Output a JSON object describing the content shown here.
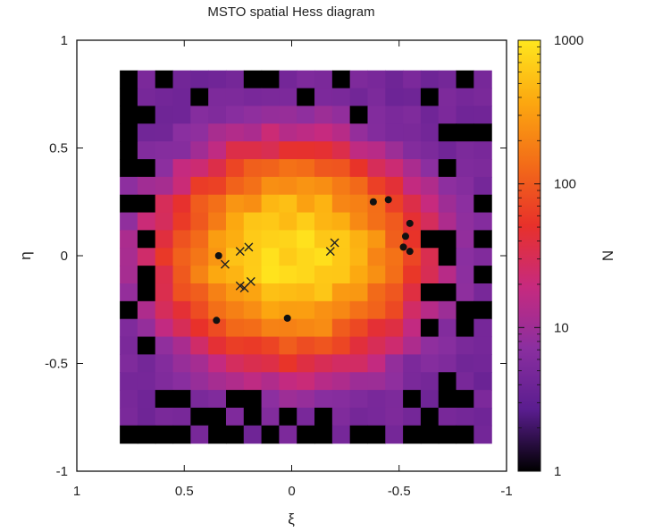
{
  "chart_data": {
    "type": "heatmap",
    "title": "MSTO spatial Hess diagram",
    "xlabel": "ξ",
    "ylabel": "η",
    "colorbar_label": "N",
    "colorbar_scale": "log",
    "colorbar_range": [
      1,
      1000
    ],
    "colorbar_ticks": [
      {
        "value": 1,
        "label": "1"
      },
      {
        "value": 10,
        "label": "10"
      },
      {
        "value": 100,
        "label": "100"
      },
      {
        "value": 1000,
        "label": "1000"
      }
    ],
    "colormap": [
      "#000000",
      "#5a1d8f",
      "#8b2fa0",
      "#c72a7e",
      "#e8312a",
      "#f36d18",
      "#fca810",
      "#ffe61e"
    ],
    "xlim": [
      1,
      -1
    ],
    "ylim": [
      -1,
      1
    ],
    "x_reversed": true,
    "x_ticks": [
      {
        "value": 1,
        "label": "1"
      },
      {
        "value": 0.5,
        "label": "0.5"
      },
      {
        "value": 0,
        "label": "0"
      },
      {
        "value": -0.5,
        "label": "-0.5"
      },
      {
        "value": -1,
        "label": "-1"
      }
    ],
    "y_ticks": [
      {
        "value": 1,
        "label": "1"
      },
      {
        "value": 0.5,
        "label": "0.5"
      },
      {
        "value": 0,
        "label": "0"
      },
      {
        "value": -0.5,
        "label": "-0.5"
      },
      {
        "value": -1,
        "label": "-1"
      }
    ],
    "grid": false,
    "heatmap": {
      "xi_range": [
        0.8,
        -0.93
      ],
      "eta_range": [
        -0.87,
        0.86
      ],
      "nx": 21,
      "ny": 21,
      "peak_counts": 850,
      "peak_center": [
        0,
        0
      ],
      "background_counts": 4
    },
    "markers_dots": [
      [
        0.34,
        0.0
      ],
      [
        0.35,
        -0.3
      ],
      [
        0.02,
        -0.29
      ],
      [
        -0.38,
        0.25
      ],
      [
        -0.45,
        0.26
      ],
      [
        -0.55,
        0.15
      ],
      [
        -0.53,
        0.09
      ],
      [
        -0.52,
        0.04
      ],
      [
        -0.55,
        0.02
      ]
    ],
    "markers_crosses": [
      [
        0.31,
        -0.04
      ],
      [
        0.24,
        0.02
      ],
      [
        0.2,
        0.04
      ],
      [
        0.24,
        -0.14
      ],
      [
        0.22,
        -0.15
      ],
      [
        0.19,
        -0.12
      ],
      [
        -0.18,
        0.02
      ],
      [
        -0.2,
        0.06
      ]
    ]
  }
}
